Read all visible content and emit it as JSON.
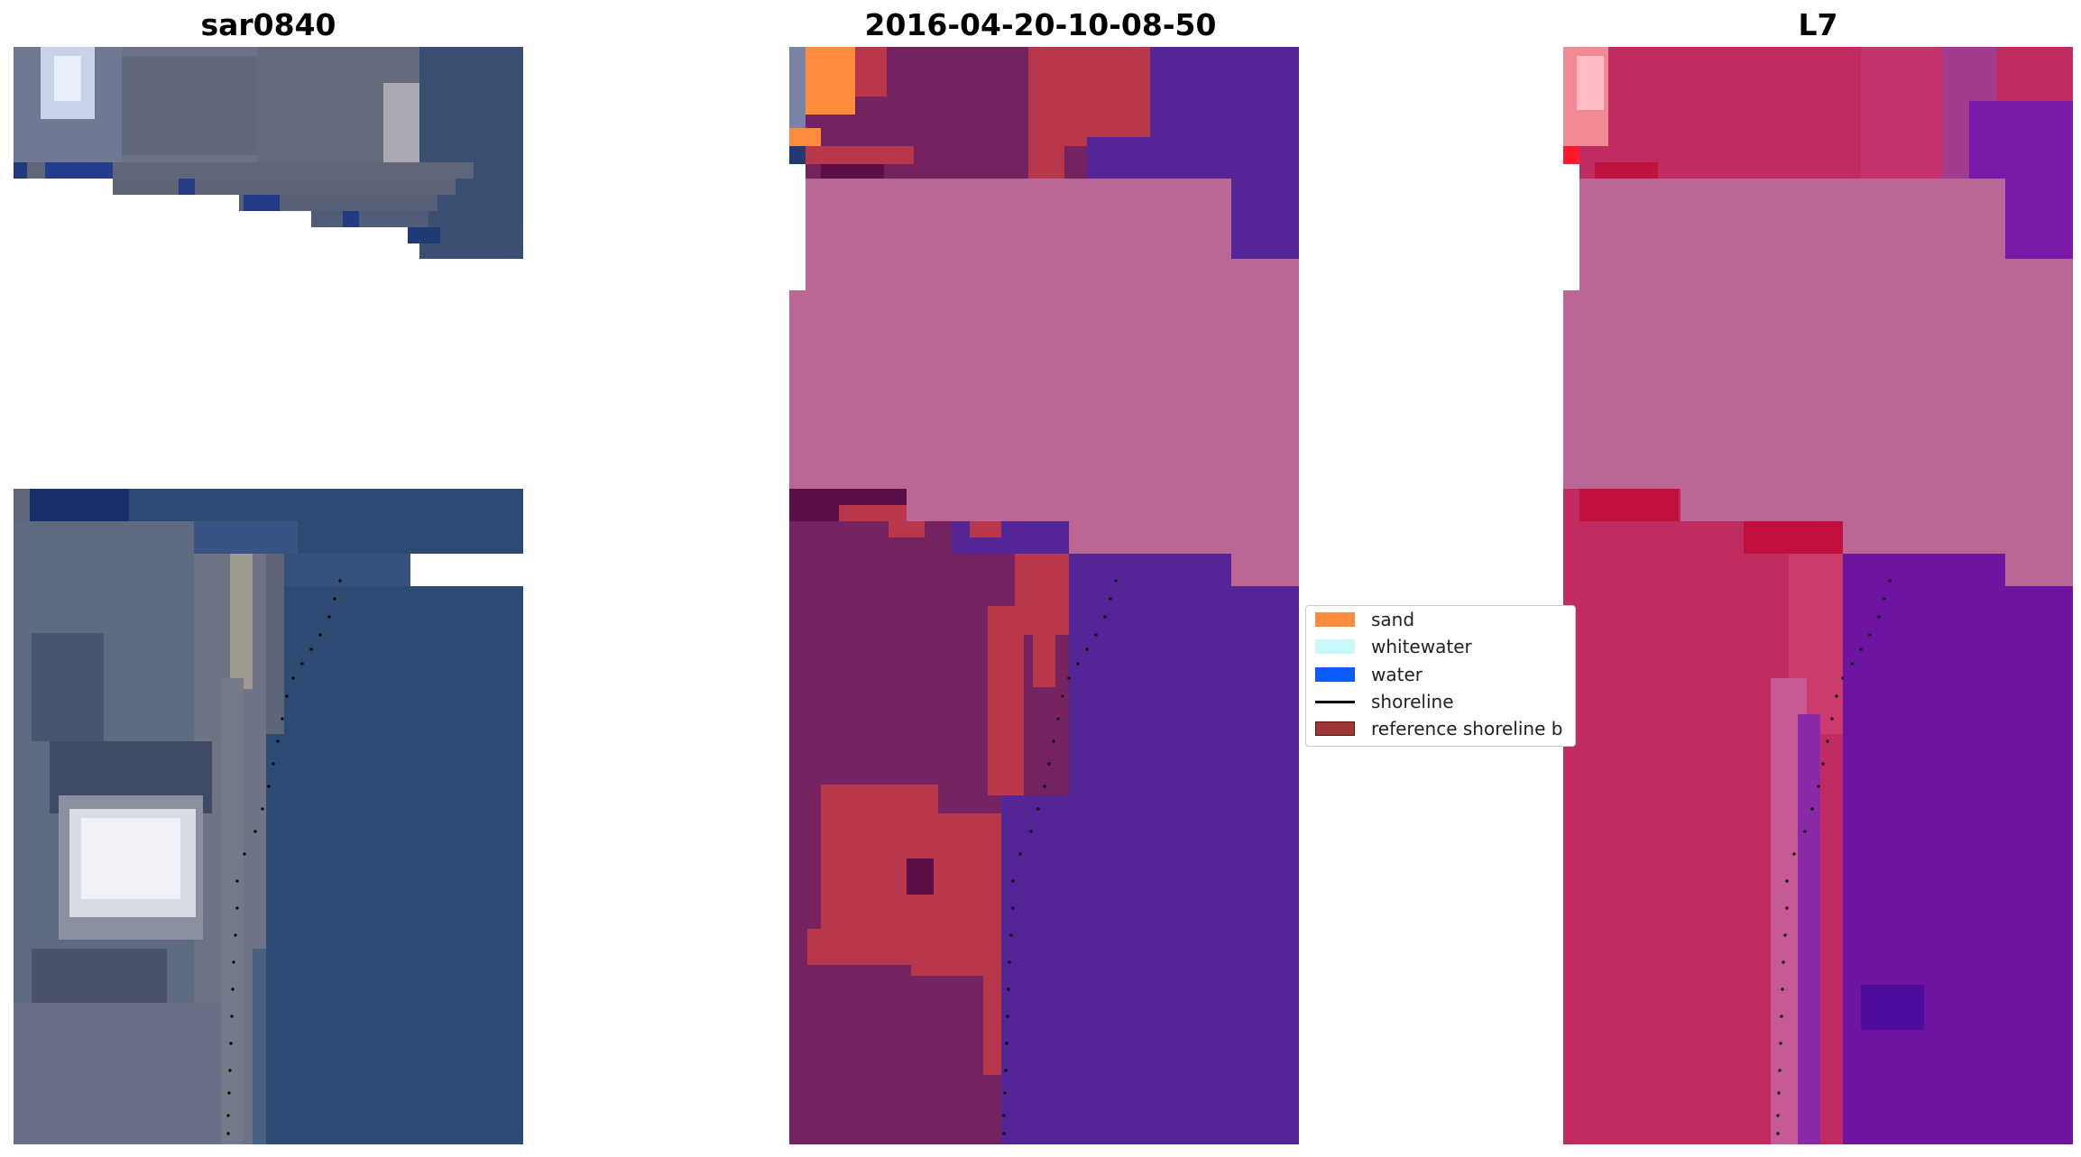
{
  "panels": [
    {
      "title": "sar0840",
      "kind": "rgb"
    },
    {
      "title": "2016-04-20-10-08-50",
      "kind": "classified"
    },
    {
      "title": "L7",
      "kind": "false-color"
    }
  ],
  "legend": {
    "items": [
      {
        "label": "sand",
        "color": "#ff8c3c",
        "style": "patch"
      },
      {
        "label": "whitewater",
        "color": "#c8fafc",
        "style": "patch"
      },
      {
        "label": "water",
        "color": "#0a5cff",
        "style": "patch"
      },
      {
        "label": "shoreline",
        "color": "#000000",
        "style": "line"
      },
      {
        "label": "reference shoreline b",
        "color": "#9e3838",
        "style": "patch"
      }
    ]
  },
  "colors": {
    "cloud_mask": "#bb6694",
    "rgb_land": "#5e6a80",
    "rgb_water": "#2d4a72",
    "class_land": "#742360",
    "class_water": "#532596",
    "class_buffer": "#b8374b",
    "fc_land": "#c02c62",
    "fc_water": "#6d14a0"
  }
}
